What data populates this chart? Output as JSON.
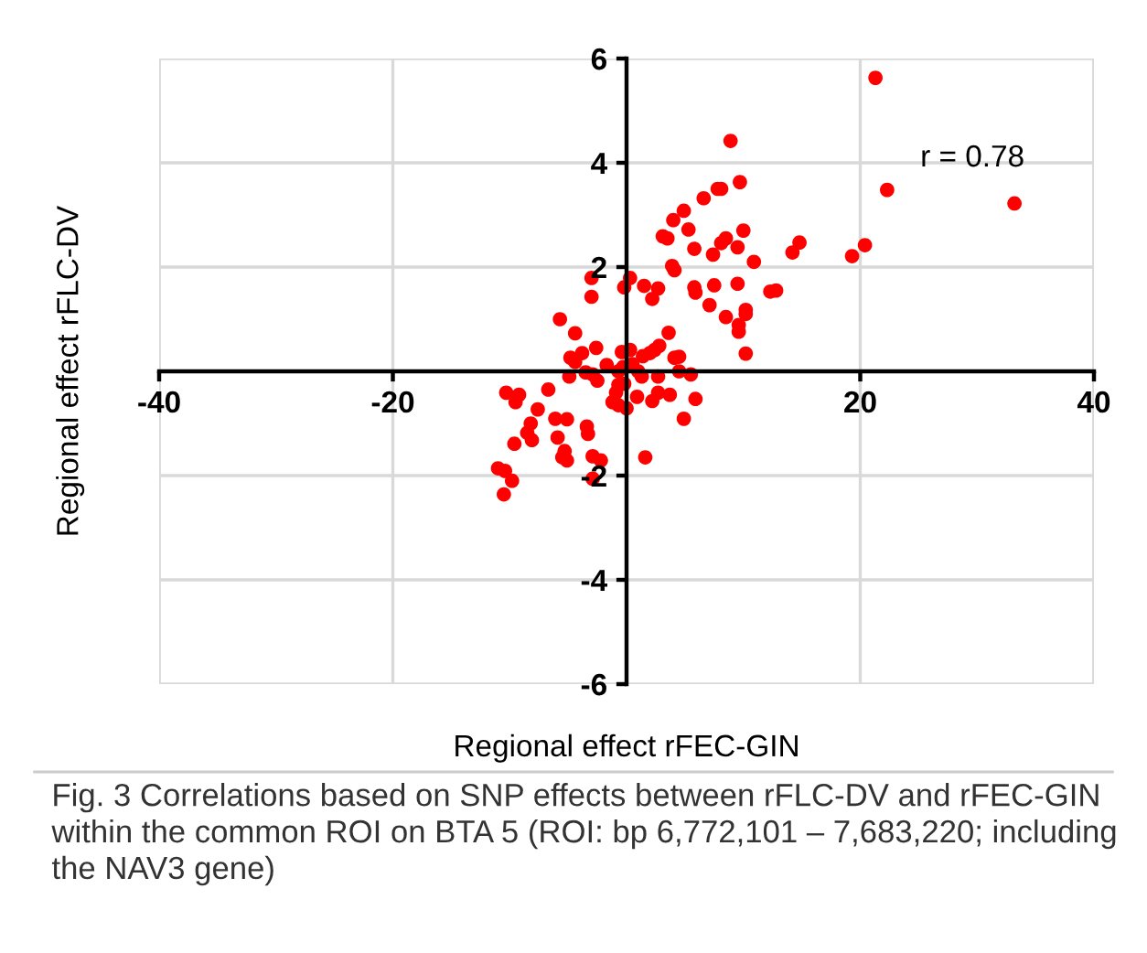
{
  "chart_data": {
    "type": "scatter",
    "xlabel": "Regional effect rFEC-GIN",
    "ylabel": "Regional effect rFLC-DV",
    "annotations": [
      "r = 0.78",
      "Fig. 3 Correlations based on SNP effects between rFLC-DV and rFEC-GIN within the common ROI on BTA 5 (ROI: bp 6,772,101 – 7,683,220; including the NAV3 gene)"
    ],
    "xlim": [
      -40,
      40
    ],
    "ylim": [
      -6,
      6
    ],
    "xticks": [
      -40,
      -20,
      20,
      40
    ],
    "yticks": [
      -6,
      -4,
      -2,
      2,
      4,
      6
    ],
    "grid": true,
    "marker": "circle",
    "series": [
      {
        "color": "#ff0000",
        "x": [
          21.3,
          22.3,
          33.2,
          20.4,
          19.3,
          14.8,
          14.2,
          10.9,
          10.0,
          9.5,
          9.7,
          8.9,
          9.5,
          12.3,
          12.8,
          10.2,
          10.2,
          9.6,
          9.6,
          10.2,
          7.8,
          8.1,
          6.6,
          4.9,
          4.0,
          5.3,
          3.1,
          3.5,
          8.5,
          8.1,
          7.4,
          5.8,
          3.9,
          4.1,
          -3.0,
          -3.0,
          0.3,
          -0.2,
          1.5,
          2.7,
          2.2,
          5.8,
          5.9,
          7.5,
          7.1,
          8.5,
          -5.7,
          -4.4,
          3.6,
          2.8,
          2.4,
          2.0,
          1.4,
          4.1,
          4.5,
          -2.6,
          -3.8,
          -4.8,
          -4.4,
          -0.4,
          0.3,
          -1.7,
          0.5,
          -0.3,
          -0.7,
          -3.5,
          -2.9,
          -2.5,
          -4.9,
          1.0,
          1.3,
          2.7,
          4.5,
          5.5,
          -0.7,
          -0.2,
          -6.7,
          -10.3,
          -9.2,
          -9.5,
          -0.9,
          -1.2,
          -0.7,
          0.0,
          0.9,
          2.7,
          2.2,
          3.7,
          5.9,
          -7.6,
          -8.2,
          -8.5,
          -6.1,
          -5.1,
          -3.4,
          -3.3,
          4.9,
          -5.9,
          -8.1,
          -9.6,
          -5.3,
          -5.5,
          -5.1,
          -2.9,
          -2.2,
          1.6,
          -11.0,
          -10.4,
          -9.8,
          -2.9,
          -10.5
        ],
        "values": [
          5.63,
          3.48,
          3.22,
          2.42,
          2.21,
          2.47,
          2.28,
          2.1,
          2.7,
          2.38,
          3.63,
          4.42,
          1.68,
          1.53,
          1.55,
          1.18,
          1.1,
          0.89,
          0.76,
          0.34,
          3.5,
          3.5,
          3.32,
          3.08,
          2.9,
          2.72,
          2.59,
          2.55,
          2.55,
          2.46,
          2.24,
          2.35,
          2.02,
          1.94,
          1.79,
          1.43,
          1.79,
          1.61,
          1.64,
          1.59,
          1.39,
          1.61,
          1.51,
          1.65,
          1.27,
          1.04,
          1.0,
          0.73,
          0.74,
          0.49,
          0.41,
          0.35,
          0.29,
          0.26,
          0.28,
          0.45,
          0.35,
          0.26,
          0.18,
          0.37,
          0.41,
          0.12,
          0.14,
          0.08,
          0.0,
          -0.02,
          -0.06,
          -0.18,
          -0.1,
          0.0,
          -0.1,
          -0.1,
          0.0,
          -0.06,
          -0.26,
          -0.24,
          -0.35,
          -0.41,
          -0.45,
          -0.59,
          -0.41,
          -0.59,
          -0.65,
          -0.71,
          -0.49,
          -0.41,
          -0.57,
          -0.45,
          -0.53,
          -0.73,
          -1.0,
          -1.18,
          -0.91,
          -0.92,
          -1.06,
          -1.2,
          -0.91,
          -1.27,
          -1.32,
          -1.39,
          -1.53,
          -1.65,
          -1.71,
          -1.63,
          -1.71,
          -1.65,
          -1.86,
          -1.91,
          -2.1,
          -2.06,
          -2.36
        ]
      }
    ]
  }
}
